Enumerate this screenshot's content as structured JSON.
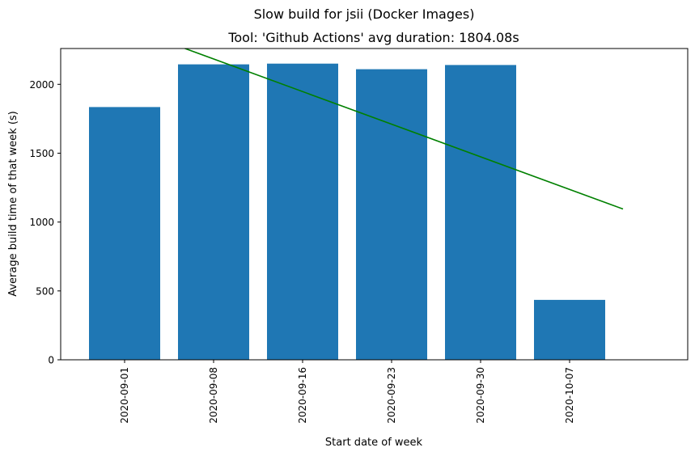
{
  "chart_data": {
    "type": "bar",
    "title": "Slow build for jsii (Docker Images)",
    "subtitle": "Tool: 'Github Actions' avg duration: 1804.08s",
    "xlabel": "Start date of week",
    "ylabel": "Average build time of that week (s)",
    "categories": [
      "2020-09-01",
      "2020-09-08",
      "2020-09-16",
      "2020-09-23",
      "2020-09-30",
      "2020-10-07"
    ],
    "values": [
      1835,
      2145,
      2150,
      2110,
      2140,
      435
    ],
    "ylim": [
      0,
      2260
    ],
    "yticks": [
      0,
      500,
      1000,
      1500,
      2000
    ],
    "bar_color": "#1f77b4",
    "trend_line": {
      "color": "#008000",
      "start": {
        "x": 0,
        "y": 2480
      },
      "end": {
        "x": 6,
        "y": 1095
      }
    },
    "grid": false,
    "legend": "none"
  }
}
